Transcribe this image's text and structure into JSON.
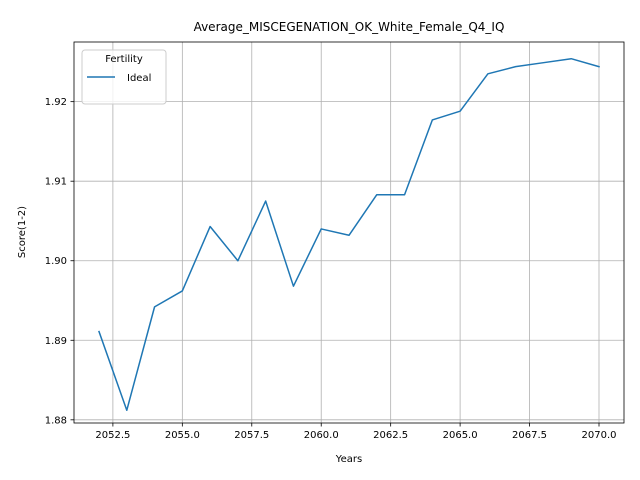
{
  "chart_data": {
    "type": "line",
    "title": "Average_MISCEGENATION_OK_White_Female_Q4_IQ",
    "xlabel": "Years",
    "ylabel": "Score(1-2)",
    "xlim": [
      2051.1,
      2070.9
    ],
    "ylim": [
      1.8796,
      1.9275
    ],
    "x_ticks": [
      2052.5,
      2055.0,
      2057.5,
      2060.0,
      2062.5,
      2065.0,
      2067.5,
      2070.0
    ],
    "x_tick_labels": [
      "2052.5",
      "2055.0",
      "2057.5",
      "2060.0",
      "2062.5",
      "2065.0",
      "2067.5",
      "2070.0"
    ],
    "y_ticks": [
      1.88,
      1.89,
      1.9,
      1.91,
      1.92
    ],
    "y_tick_labels": [
      "1.88",
      "1.89",
      "1.90",
      "1.91",
      "1.92"
    ],
    "grid": true,
    "legend": {
      "title": "Fertility",
      "placement": "top-left"
    },
    "series": [
      {
        "name": "Ideal",
        "color": "#1f77b4",
        "x": [
          2052,
          2053,
          2054,
          2055,
          2056,
          2057,
          2058,
          2059,
          2060,
          2061,
          2062,
          2063,
          2064,
          2065,
          2066,
          2067,
          2068,
          2069,
          2070
        ],
        "y": [
          1.8911,
          1.8812,
          1.8942,
          1.8962,
          1.9043,
          1.9,
          1.9075,
          1.8968,
          1.904,
          1.9032,
          1.9083,
          1.9083,
          1.9177,
          1.9188,
          1.9235,
          1.9244,
          1.9249,
          1.9254,
          1.9244
        ]
      }
    ]
  }
}
